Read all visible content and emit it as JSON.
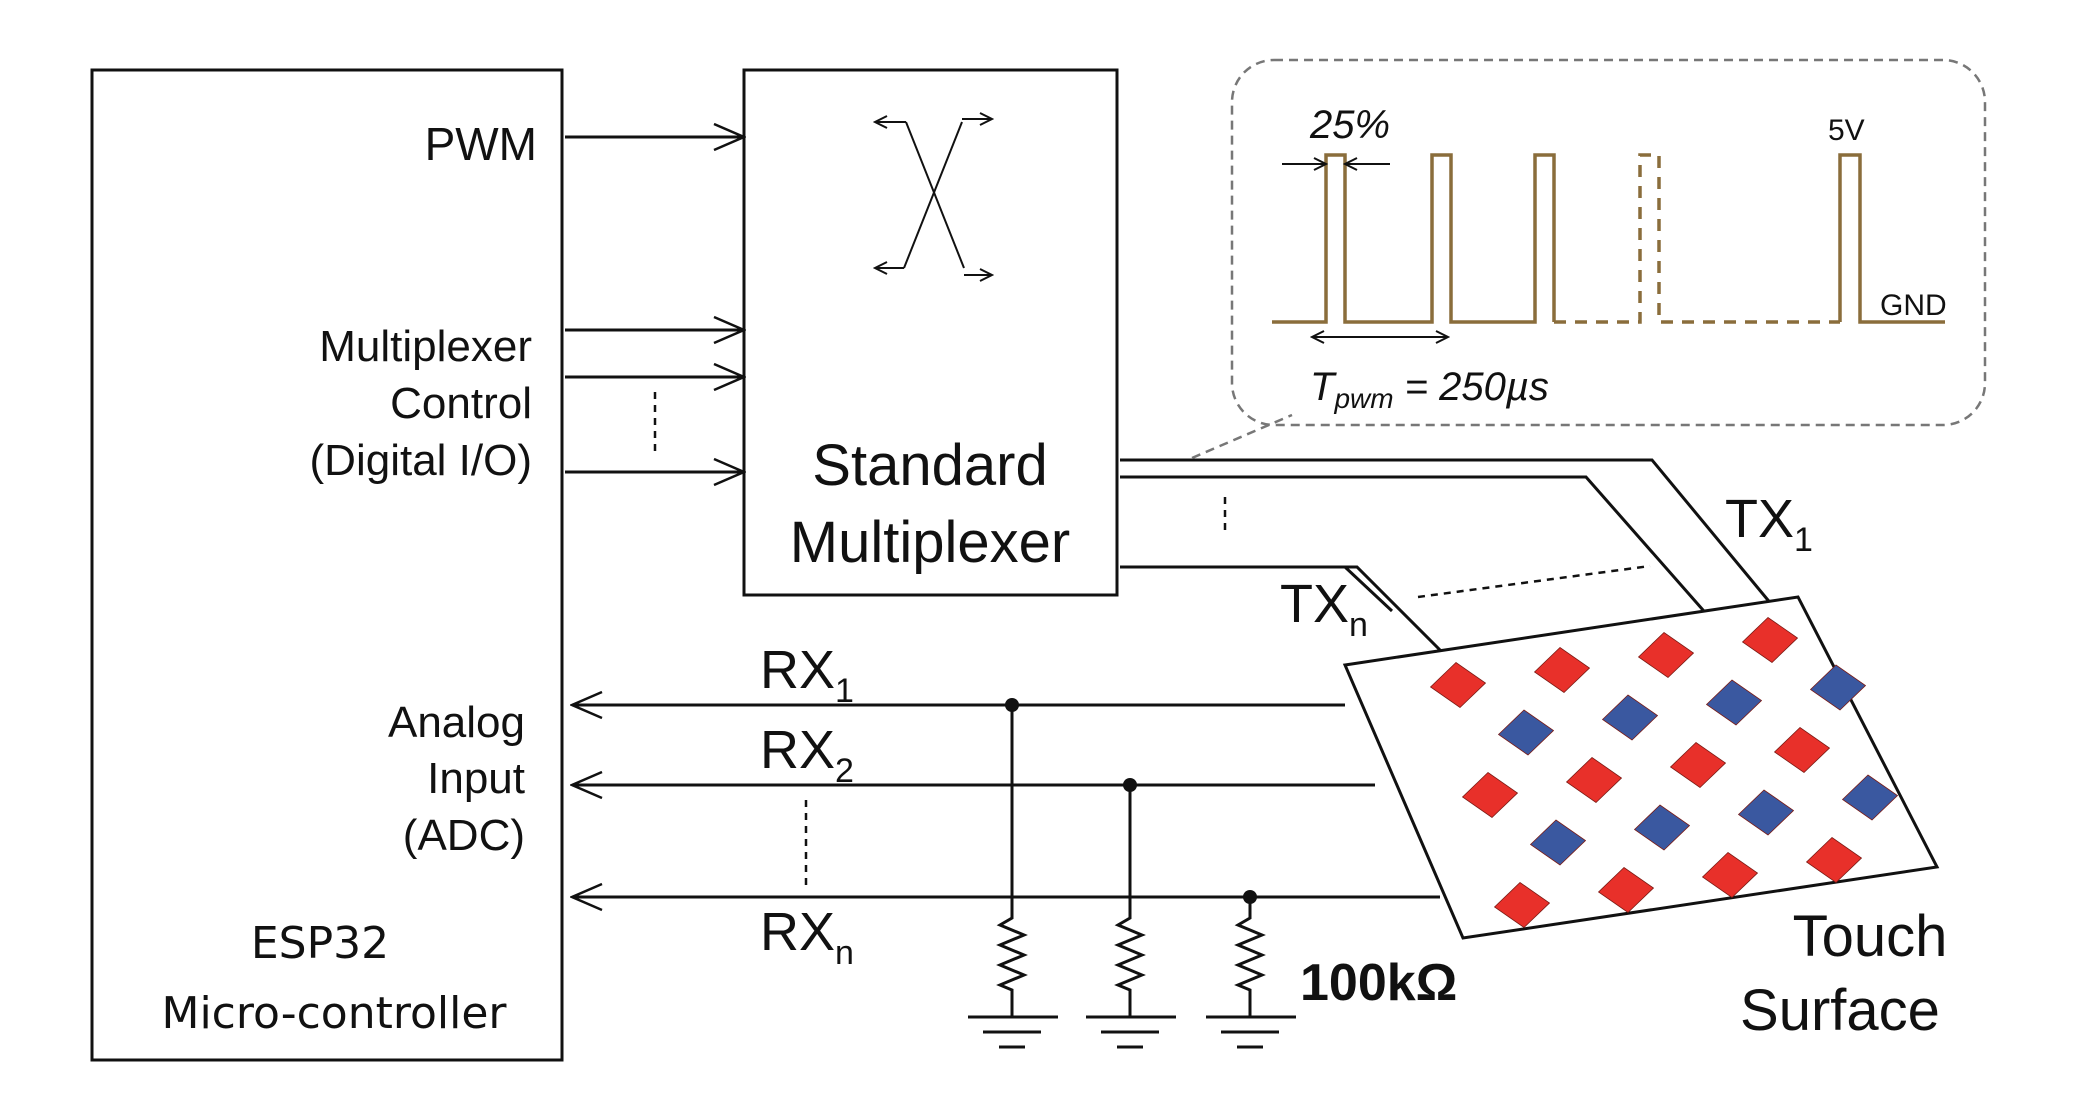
{
  "microcontroller": {
    "name_line1": "ESP32",
    "name_line2": "Micro-controller",
    "pwm_label": "PWM",
    "mux_ctrl_line1": "Multiplexer",
    "mux_ctrl_line2": "Control",
    "mux_ctrl_line3": "(Digital I/O)",
    "adc_line1": "Analog",
    "adc_line2": "Input",
    "adc_line3": "(ADC)"
  },
  "multiplexer": {
    "line1": "Standard",
    "line2": "Multiplexer"
  },
  "tx": {
    "tx1_base": "TX",
    "tx1_sub": "1",
    "txn_base": "TX",
    "txn_sub": "n"
  },
  "rx": {
    "rx1_base": "RX",
    "rx1_sub": "1",
    "rx2_base": "RX",
    "rx2_sub": "2",
    "rxn_base": "RX",
    "rxn_sub": "n"
  },
  "resistor": {
    "value": "100kΩ"
  },
  "touch_surface": {
    "line1": "Touch",
    "line2": "Surface",
    "electrode_colors": {
      "tx": "#e8302a",
      "rx": "#3a58a0"
    }
  },
  "waveform": {
    "duty": "25%",
    "period_T": "T",
    "period_sub": "pwm",
    "period_value": " = 250µs",
    "high_label": "5V",
    "low_label": "GND",
    "line_color": "#8a6d3b"
  }
}
